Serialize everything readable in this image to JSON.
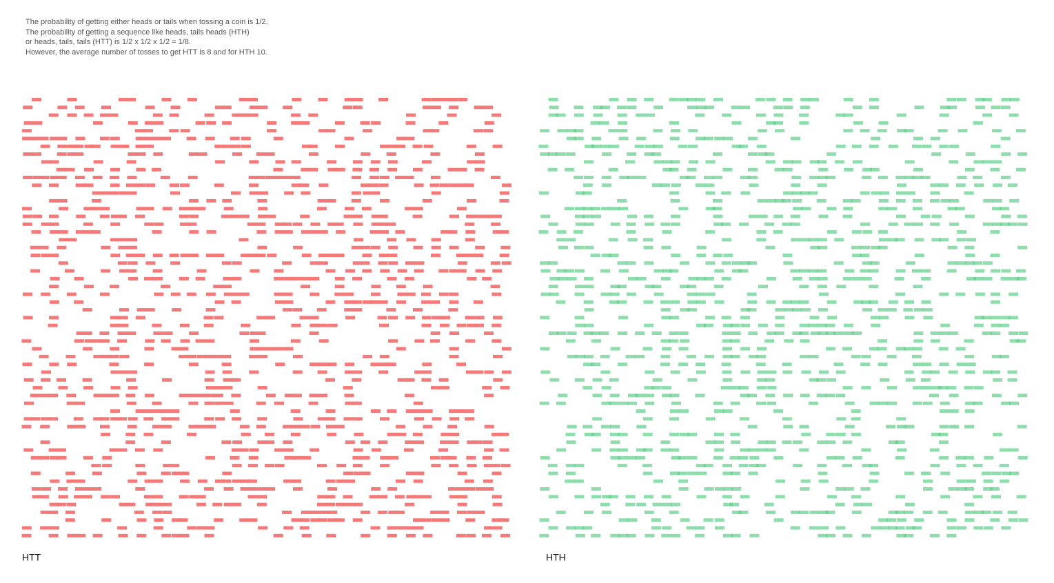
{
  "intro": [
    "The probability of getting either heads or tails when tossing a coin is 1/2.",
    "The probability of getting a sequence like heads, tails heads (HTH)",
    "or heads, tails, tails (HTT) is 1/2 x 1/2 x 1/2 = 1/8.",
    "However, the average number of tosses to get HTT is 8 and for HTH 10."
  ],
  "panels": [
    {
      "label": "HTT"
    },
    {
      "label": "HTH"
    }
  ]
}
